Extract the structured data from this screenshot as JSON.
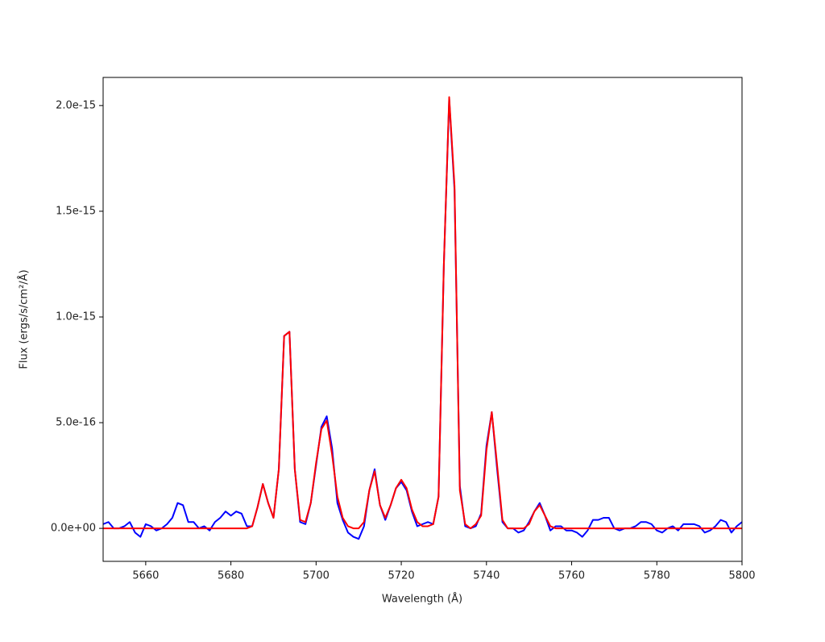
{
  "chart_data": {
    "type": "line",
    "xlabel": "Wavelength (Å)",
    "ylabel": "Flux (ergs/s/cm²/Å)",
    "x": [
      5650,
      5651.25,
      5652.5,
      5653.75,
      5655,
      5656.25,
      5657.5,
      5658.75,
      5660,
      5661.25,
      5662.5,
      5663.75,
      5665,
      5666.25,
      5667.5,
      5668.75,
      5670,
      5671.25,
      5672.5,
      5673.75,
      5675,
      5676.25,
      5677.5,
      5678.75,
      5680,
      5681.25,
      5682.5,
      5683.75,
      5685,
      5686.25,
      5687.5,
      5688.75,
      5690,
      5691.25,
      5692.5,
      5693.75,
      5695,
      5696.25,
      5697.5,
      5698.75,
      5700,
      5701.25,
      5702.5,
      5703.75,
      5705,
      5706.25,
      5707.5,
      5708.75,
      5710,
      5711.25,
      5712.5,
      5713.75,
      5715,
      5716.25,
      5717.5,
      5718.75,
      5720,
      5721.25,
      5722.5,
      5723.75,
      5725,
      5726.25,
      5727.5,
      5728.75,
      5730,
      5731.25,
      5732.5,
      5733.75,
      5735,
      5736.25,
      5737.5,
      5738.75,
      5740,
      5741.25,
      5742.5,
      5743.75,
      5745,
      5746.25,
      5747.5,
      5748.75,
      5750,
      5751.25,
      5752.5,
      5753.75,
      5755,
      5756.25,
      5757.5,
      5758.75,
      5760,
      5761.25,
      5762.5,
      5763.75,
      5765,
      5766.25,
      5767.5,
      5768.75,
      5770,
      5771.25,
      5772.5,
      5773.75,
      5775,
      5776.25,
      5777.5,
      5778.75,
      5780,
      5781.25,
      5782.5,
      5783.75,
      5785,
      5786.25,
      5787.5,
      5788.75,
      5790,
      5791.25,
      5792.5,
      5793.75,
      5795,
      5796.25,
      5797.5,
      5798.75,
      5800
    ],
    "series": [
      {
        "color": "#0000ff",
        "values": [
          2e-17,
          3e-17,
          0,
          0,
          1e-17,
          3e-17,
          -2e-17,
          -4e-17,
          2e-17,
          1e-17,
          -1e-17,
          0,
          2e-17,
          5e-17,
          1.2e-16,
          1.1e-16,
          3e-17,
          3e-17,
          0,
          1e-17,
          -1e-17,
          3e-17,
          5e-17,
          8e-17,
          6e-17,
          8e-17,
          7e-17,
          1e-17,
          1e-17,
          1e-16,
          2.1e-16,
          1.2e-16,
          5e-17,
          2.8e-16,
          9.1e-16,
          9.3e-16,
          2.8e-16,
          3e-17,
          2e-17,
          1.2e-16,
          3e-16,
          4.8e-16,
          5.3e-16,
          3.8e-16,
          1.2e-16,
          4e-17,
          -2e-17,
          -4e-17,
          -5e-17,
          1e-17,
          1.8e-16,
          2.8e-16,
          1.1e-16,
          4e-17,
          1.1e-16,
          1.9e-16,
          2.2e-16,
          1.8e-16,
          8e-17,
          1e-17,
          2e-17,
          3e-17,
          2e-17,
          1.5e-16,
          1.25e-15,
          2.03e-15,
          1.6e-15,
          2e-16,
          1e-17,
          0,
          1e-17,
          7e-17,
          3.9e-16,
          5.5e-16,
          2.8e-16,
          3e-17,
          0,
          0,
          -2e-17,
          -1e-17,
          3e-17,
          8e-17,
          1.2e-16,
          6e-17,
          -1e-17,
          1e-17,
          1e-17,
          -1e-17,
          -1e-17,
          -2e-17,
          -4e-17,
          -1e-17,
          4e-17,
          4e-17,
          5e-17,
          5e-17,
          0,
          -1e-17,
          0,
          0,
          1e-17,
          3e-17,
          3e-17,
          2e-17,
          -1e-17,
          -2e-17,
          0,
          1e-17,
          -1e-17,
          2e-17,
          2e-17,
          2e-17,
          1e-17,
          -2e-17,
          -1e-17,
          1e-17,
          4e-17,
          3e-17,
          -2e-17,
          1e-17,
          3e-17
        ]
      },
      {
        "color": "#ff0000",
        "values": [
          0,
          0,
          0,
          0,
          0,
          0,
          0,
          0,
          0,
          0,
          0,
          0,
          0,
          0,
          0,
          0,
          0,
          0,
          0,
          0,
          0,
          0,
          0,
          0,
          0,
          0,
          0,
          0,
          1e-17,
          1e-16,
          2.1e-16,
          1.2e-16,
          5e-17,
          2.8e-16,
          9.1e-16,
          9.3e-16,
          2.8e-16,
          4e-17,
          3e-17,
          1.2e-16,
          3.1e-16,
          4.7e-16,
          5.1e-16,
          3.5e-16,
          1.5e-16,
          5e-17,
          1e-17,
          0,
          0,
          3e-17,
          1.8e-16,
          2.7e-16,
          1.1e-16,
          5e-17,
          1.1e-16,
          1.9e-16,
          2.3e-16,
          1.9e-16,
          9e-17,
          3e-17,
          1e-17,
          1e-17,
          2e-17,
          1.5e-16,
          1.25e-15,
          2.04e-15,
          1.62e-15,
          1.8e-16,
          2e-17,
          0,
          2e-17,
          6e-17,
          3.7e-16,
          5.5e-16,
          3e-16,
          4e-17,
          0,
          0,
          0,
          0,
          2e-17,
          8e-17,
          1.1e-16,
          6e-17,
          1e-17,
          0,
          0,
          0,
          0,
          0,
          0,
          0,
          0,
          0,
          0,
          0,
          0,
          0,
          0,
          0,
          0,
          0,
          0,
          0,
          0,
          0,
          0,
          0,
          0,
          0,
          0,
          0,
          0,
          0,
          0,
          0,
          0,
          0,
          0,
          0,
          0
        ]
      }
    ],
    "xlim": [
      5650,
      5800
    ],
    "xticks": [
      5660,
      5680,
      5700,
      5720,
      5740,
      5760,
      5780,
      5800
    ],
    "ylim": [
      -1.56e-16,
      2.133e-15
    ],
    "yticks": [
      {
        "value": 0,
        "label": "0.0e+00"
      },
      {
        "value": 5e-16,
        "label": "5.0e-16"
      },
      {
        "value": 1e-15,
        "label": "1.0e-15"
      },
      {
        "value": 1.5e-15,
        "label": "1.5e-15"
      },
      {
        "value": 2e-15,
        "label": "2.0e-15"
      }
    ]
  }
}
